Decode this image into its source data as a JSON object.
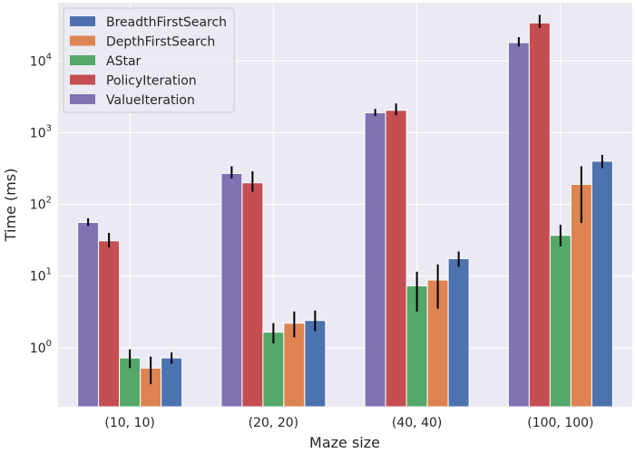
{
  "chart_data": {
    "type": "bar",
    "title": "",
    "xlabel": "Maze size",
    "ylabel": "Time (ms)",
    "yscale": "log",
    "ylim": [
      0.15,
      65000
    ],
    "yticks": [
      1,
      10,
      100,
      1000,
      10000
    ],
    "ytick_labels": [
      {
        "base": "10",
        "exp": "0"
      },
      {
        "base": "10",
        "exp": "1"
      },
      {
        "base": "10",
        "exp": "2"
      },
      {
        "base": "10",
        "exp": "3"
      },
      {
        "base": "10",
        "exp": "4"
      }
    ],
    "categories": [
      "(10, 10)",
      "(20, 20)",
      "(40, 40)",
      "(100, 100)"
    ],
    "bar_order": [
      "ValueIteration",
      "PolicyIteration",
      "AStar",
      "DepthFirstSearch",
      "BreadthFirstSearch"
    ],
    "series": [
      {
        "name": "BreadthFirstSearch",
        "color": "#4c72b0",
        "values": [
          0.72,
          2.4,
          17.5,
          400
        ],
        "err_low": [
          0.6,
          1.7,
          13.5,
          320
        ],
        "err_high": [
          0.86,
          3.3,
          22,
          490
        ]
      },
      {
        "name": "DepthFirstSearch",
        "color": "#dd8452",
        "values": [
          0.52,
          2.2,
          8.8,
          190
        ],
        "err_low": [
          0.31,
          1.4,
          3.5,
          55
        ],
        "err_high": [
          0.75,
          3.2,
          14.5,
          340
        ]
      },
      {
        "name": "AStar",
        "color": "#55a868",
        "values": [
          0.72,
          1.65,
          7.3,
          37
        ],
        "err_low": [
          0.52,
          1.15,
          3.2,
          26
        ],
        "err_high": [
          0.95,
          2.2,
          11.5,
          52
        ]
      },
      {
        "name": "PolicyIteration",
        "color": "#c44e52",
        "values": [
          31,
          200,
          2050,
          34000
        ],
        "err_low": [
          25,
          150,
          1750,
          29000
        ],
        "err_high": [
          40,
          290,
          2550,
          44000
        ]
      },
      {
        "name": "ValueIteration",
        "color": "#8172b3",
        "values": [
          56,
          270,
          1900,
          18000
        ],
        "err_low": [
          50,
          230,
          1700,
          16000
        ],
        "err_high": [
          64,
          340,
          2150,
          21500
        ]
      }
    ],
    "legend": {
      "location": "top-left",
      "entries": [
        "BreadthFirstSearch",
        "DepthFirstSearch",
        "AStar",
        "PolicyIteration",
        "ValueIteration"
      ]
    },
    "grid": true,
    "style": {
      "axes_bg": "#eaeaf2",
      "grid_color": "#ffffff",
      "error_color": "#000000"
    }
  }
}
